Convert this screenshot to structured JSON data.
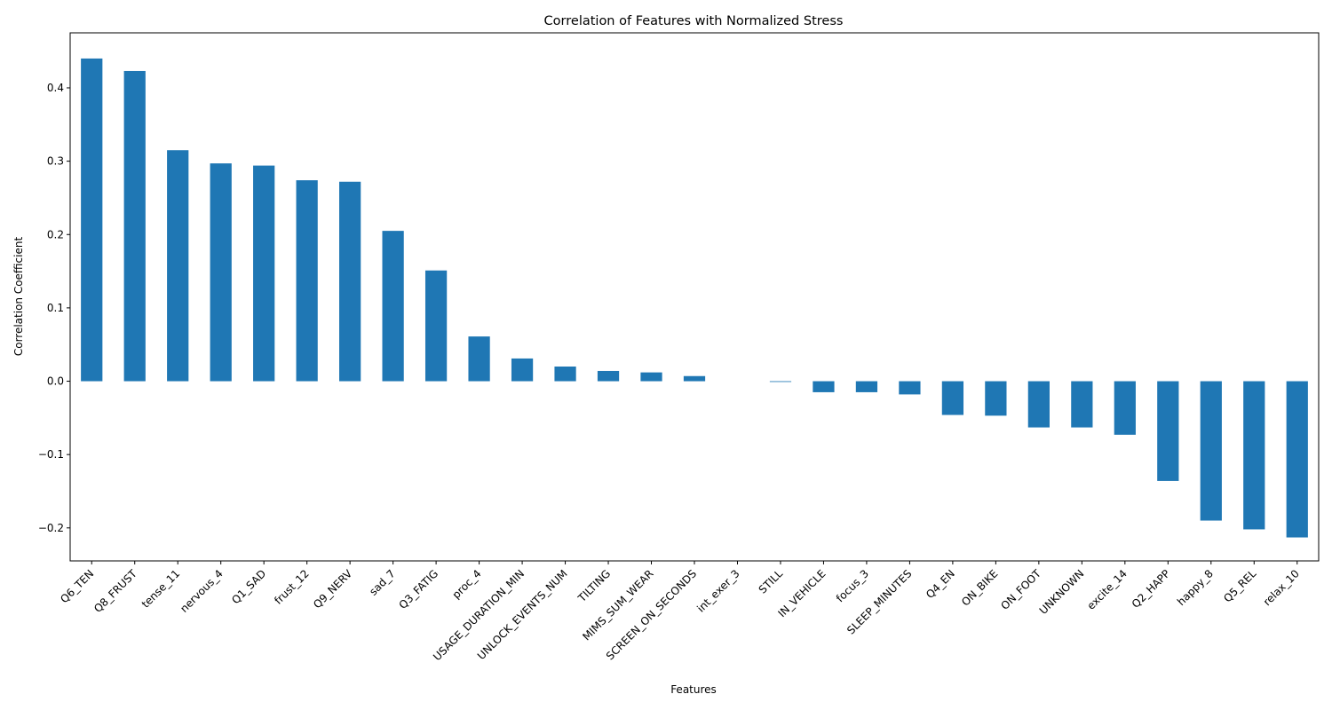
{
  "chart_data": {
    "type": "bar",
    "title": "Correlation of Features with Normalized Stress",
    "xlabel": "Features",
    "ylabel": "Correlation Coefficient",
    "ylim": [
      -0.245,
      0.475
    ],
    "yticks": [
      -0.2,
      -0.1,
      0.0,
      0.1,
      0.2,
      0.3,
      0.4
    ],
    "ytick_labels": [
      "−0.2",
      "−0.1",
      "0.0",
      "0.1",
      "0.2",
      "0.3",
      "0.4"
    ],
    "bar_color": "#1f77b4",
    "grid": false,
    "categories": [
      "Q6_TEN",
      "Q8_FRUST",
      "tense_11",
      "nervous_4",
      "Q1_SAD",
      "frust_12",
      "Q9_NERV",
      "sad_7",
      "Q3_FATIG",
      "proc_4",
      "USAGE_DURATION_MIN",
      "UNLOCK_EVENTS_NUM",
      "TILTING",
      "MIMS_SUM_WEAR",
      "SCREEN_ON_SECONDS",
      "int_exer_3",
      "STILL",
      "IN_VEHICLE",
      "focus_3",
      "SLEEP_MINUTES",
      "Q4_EN",
      "ON_BIKE",
      "ON_FOOT",
      "UNKNOWN",
      "excite_14",
      "Q2_HAPP",
      "happy_8",
      "Q5_REL",
      "relax_10"
    ],
    "values": [
      0.44,
      0.423,
      0.315,
      0.297,
      0.294,
      0.274,
      0.272,
      0.205,
      0.151,
      0.061,
      0.031,
      0.02,
      0.014,
      0.012,
      0.007,
      0.0,
      -0.001,
      -0.015,
      -0.015,
      -0.018,
      -0.046,
      -0.047,
      -0.063,
      -0.063,
      -0.073,
      -0.136,
      -0.19,
      -0.202,
      -0.213
    ]
  }
}
